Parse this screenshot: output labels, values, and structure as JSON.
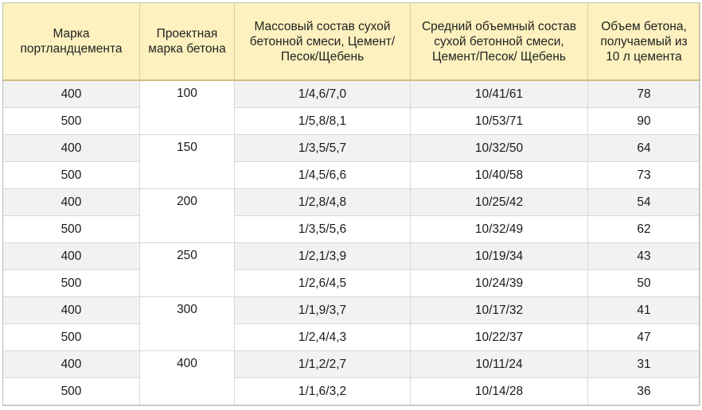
{
  "headers": [
    "Марка портландцемента",
    "Проектная марка бетона",
    "Массовый состав сухой бетонной смеси, Цемент/ Песок/Щебень",
    "Средний объемный состав сухой бетонной смеси, Цемент/Песок/ Щебень",
    "Объем бетона, получаемый из 10 л цемента"
  ],
  "groups": [
    {
      "concrete_grade": "100",
      "rows": [
        {
          "cement": "400",
          "mass": "1/4,6/7,0",
          "volume": "10/41/61",
          "yield": "78"
        },
        {
          "cement": "500",
          "mass": "1/5,8/8,1",
          "volume": "10/53/71",
          "yield": "90"
        }
      ]
    },
    {
      "concrete_grade": "150",
      "rows": [
        {
          "cement": "400",
          "mass": "1/3,5/5,7",
          "volume": "10/32/50",
          "yield": "64"
        },
        {
          "cement": "500",
          "mass": "1/4,5/6,6",
          "volume": "10/40/58",
          "yield": "73"
        }
      ]
    },
    {
      "concrete_grade": "200",
      "rows": [
        {
          "cement": "400",
          "mass": "1/2,8/4,8",
          "volume": "10/25/42",
          "yield": "54"
        },
        {
          "cement": "500",
          "mass": "1/3,5/5,6",
          "volume": "10/32/49",
          "yield": "62"
        }
      ]
    },
    {
      "concrete_grade": "250",
      "rows": [
        {
          "cement": "400",
          "mass": "1/2,1/3,9",
          "volume": "10/19/34",
          "yield": "43"
        },
        {
          "cement": "500",
          "mass": "1/2,6/4,5",
          "volume": "10/24/39",
          "yield": "50"
        }
      ]
    },
    {
      "concrete_grade": "300",
      "rows": [
        {
          "cement": "400",
          "mass": "1/1,9/3,7",
          "volume": "10/17/32",
          "yield": "41"
        },
        {
          "cement": "500",
          "mass": "1/2,4/4,3",
          "volume": "10/22/37",
          "yield": "47"
        }
      ]
    },
    {
      "concrete_grade": "400",
      "rows": [
        {
          "cement": "400",
          "mass": "1/1,2/2,7",
          "volume": "10/11/24",
          "yield": "31"
        },
        {
          "cement": "500",
          "mass": "1/1,6/3,2",
          "volume": "10/14/28",
          "yield": "36"
        }
      ]
    }
  ],
  "colors": {
    "header_bg": "#fdf2bf",
    "alt_row_bg": "#f2f2f2",
    "border": "#d8d8d8"
  }
}
